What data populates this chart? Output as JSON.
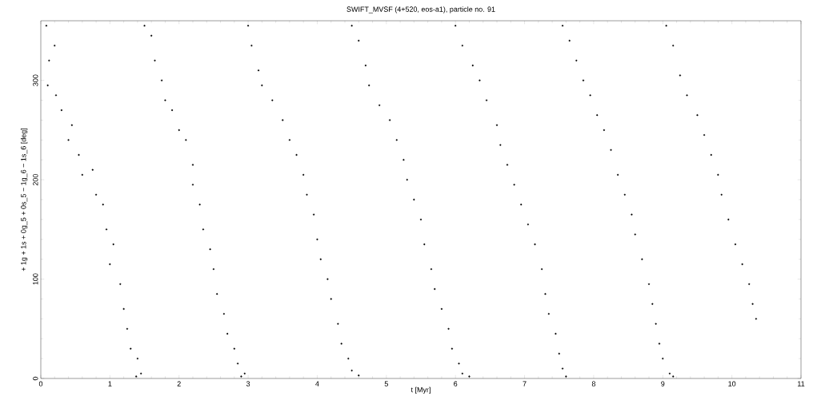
{
  "chart_data": {
    "type": "scatter",
    "title": "SWIFT_MVSF (4+520, eos-a1), particle no. 91",
    "xlabel": "t [Myr]",
    "ylabel": "+ 1g + 1s + 0g_5 + 0s_5 − 1g_6 − 1s_6 [deg]",
    "xlim": [
      0,
      11
    ],
    "ylim": [
      0,
      360
    ],
    "xticks": [
      0,
      1,
      2,
      3,
      4,
      5,
      6,
      7,
      8,
      9,
      10,
      11
    ],
    "yticks": [
      0,
      100,
      200,
      300
    ],
    "marker": "circle",
    "color": "#000000",
    "x": [
      0.08,
      0.12,
      0.2,
      0.1,
      0.22,
      0.3,
      0.45,
      0.4,
      0.55,
      0.6,
      0.75,
      0.8,
      0.9,
      0.95,
      1.05,
      1.0,
      1.15,
      1.2,
      1.25,
      1.3,
      1.4,
      1.45,
      1.38,
      1.5,
      1.6,
      1.65,
      1.75,
      1.8,
      1.9,
      2.0,
      2.1,
      2.2,
      2.2,
      2.3,
      2.35,
      2.45,
      2.5,
      2.55,
      2.65,
      2.7,
      2.8,
      2.85,
      2.95,
      2.9,
      3.0,
      3.05,
      3.15,
      3.2,
      3.35,
      3.5,
      3.6,
      3.7,
      3.8,
      3.85,
      3.95,
      4.0,
      4.05,
      4.15,
      4.2,
      4.3,
      4.35,
      4.45,
      4.5,
      4.6,
      4.5,
      4.6,
      4.7,
      4.75,
      4.9,
      5.05,
      5.15,
      5.25,
      5.3,
      5.4,
      5.5,
      5.55,
      5.65,
      5.7,
      5.8,
      5.9,
      5.95,
      6.05,
      6.1,
      6.2,
      6.0,
      6.1,
      6.25,
      6.35,
      6.45,
      6.6,
      6.65,
      6.75,
      6.85,
      6.95,
      7.05,
      7.15,
      7.25,
      7.3,
      7.35,
      7.45,
      7.5,
      7.55,
      7.6,
      7.55,
      7.65,
      7.75,
      7.85,
      7.95,
      8.05,
      8.15,
      8.25,
      8.35,
      8.45,
      8.55,
      8.6,
      8.7,
      8.8,
      8.85,
      8.9,
      8.95,
      9.0,
      9.1,
      9.15,
      9.05,
      9.15,
      9.25,
      9.35,
      9.5,
      9.6,
      9.7,
      9.8,
      9.85,
      9.95,
      10.05,
      10.15,
      10.25,
      10.3,
      10.35
    ],
    "values": [
      355,
      320,
      335,
      295,
      285,
      270,
      255,
      240,
      225,
      205,
      210,
      185,
      175,
      150,
      135,
      115,
      95,
      70,
      50,
      30,
      20,
      5,
      2,
      355,
      345,
      320,
      300,
      280,
      270,
      250,
      240,
      215,
      195,
      175,
      150,
      130,
      110,
      85,
      65,
      45,
      30,
      15,
      5,
      2,
      355,
      335,
      310,
      295,
      280,
      260,
      240,
      225,
      205,
      185,
      165,
      140,
      120,
      100,
      80,
      55,
      35,
      20,
      8,
      3,
      355,
      340,
      315,
      295,
      275,
      260,
      240,
      220,
      200,
      180,
      160,
      135,
      110,
      90,
      70,
      50,
      30,
      15,
      5,
      2,
      355,
      335,
      315,
      300,
      280,
      255,
      235,
      215,
      195,
      175,
      155,
      135,
      110,
      85,
      65,
      45,
      25,
      10,
      2,
      355,
      340,
      320,
      300,
      285,
      265,
      250,
      230,
      205,
      185,
      165,
      145,
      120,
      95,
      75,
      55,
      35,
      20,
      5,
      2,
      355,
      335,
      305,
      285,
      265,
      245,
      225,
      205,
      185,
      160,
      135,
      115,
      95,
      75,
      60
    ]
  }
}
